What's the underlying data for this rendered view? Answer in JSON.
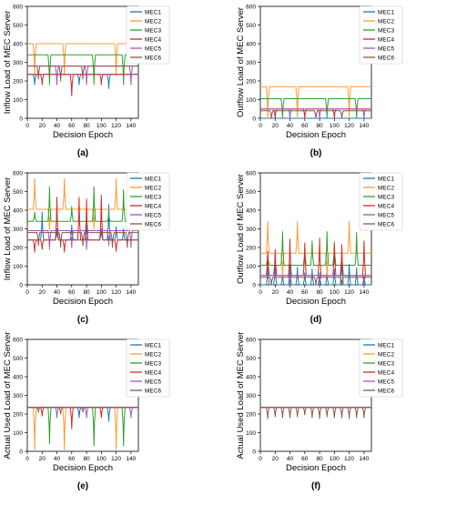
{
  "figure": {
    "series_names": [
      "MEC1",
      "MEC2",
      "MEC3",
      "MEC4",
      "MEC5",
      "MEC6"
    ],
    "series_colors": [
      "#1f77b4",
      "#ff9933",
      "#2ca02c",
      "#d62728",
      "#9b59b6",
      "#8c564b"
    ],
    "xlabel": "Decision Epoch",
    "xticks": [
      0,
      20,
      40,
      60,
      80,
      100,
      120,
      140
    ],
    "yticks": [
      0,
      100,
      200,
      300,
      400,
      500,
      600
    ],
    "xlim": [
      0,
      150
    ],
    "ylim": [
      0,
      600
    ]
  },
  "chart_data": [
    {
      "type": "line",
      "panel_label": "(a)",
      "ylabel": "Inflow Load of MEC Server",
      "xlim": [
        0,
        150
      ],
      "ylim": [
        0,
        600
      ],
      "legend": "top-right",
      "series": [
        {
          "name": "MEC1",
          "base": 235,
          "dips": [
            [
              10,
              180
            ],
            [
              70,
              180
            ],
            [
              110,
              160
            ]
          ]
        },
        {
          "name": "MEC2",
          "base": 400,
          "dips": [
            [
              10,
              230
            ],
            [
              50,
              230
            ],
            [
              120,
              230
            ]
          ]
        },
        {
          "name": "MEC3",
          "base": 340,
          "dips": [
            [
              30,
              180
            ],
            [
              90,
              180
            ],
            [
              130,
              180
            ]
          ]
        },
        {
          "name": "MEC4",
          "base": 235,
          "dips": [
            [
              20,
              180
            ],
            [
              60,
              120
            ],
            [
              100,
              180
            ]
          ]
        },
        {
          "name": "MEC5",
          "base": 280,
          "dips": [
            [
              40,
              180
            ],
            [
              80,
              180
            ],
            [
              140,
              180
            ]
          ]
        },
        {
          "name": "MEC6",
          "base": 280,
          "dips": [
            [
              15,
              210
            ],
            [
              45,
              200
            ],
            [
              75,
              210
            ]
          ]
        }
      ]
    },
    {
      "type": "line",
      "panel_label": "(b)",
      "ylabel": "Outflow Load of MEC Server",
      "xlim": [
        0,
        150
      ],
      "ylim": [
        0,
        600
      ],
      "legend": "top-right",
      "series": [
        {
          "name": "MEC1",
          "base": 0,
          "dips": []
        },
        {
          "name": "MEC2",
          "base": 170,
          "dips": [
            [
              10,
              0
            ],
            [
              50,
              0
            ],
            [
              120,
              0
            ]
          ]
        },
        {
          "name": "MEC3",
          "base": 105,
          "dips": [
            [
              30,
              0
            ],
            [
              90,
              0
            ],
            [
              130,
              0
            ]
          ]
        },
        {
          "name": "MEC4",
          "base": 50,
          "dips": [
            [
              20,
              0
            ],
            [
              60,
              0
            ],
            [
              100,
              0
            ]
          ]
        },
        {
          "name": "MEC5",
          "base": 50,
          "dips": [
            [
              40,
              0
            ],
            [
              80,
              0
            ],
            [
              140,
              0
            ]
          ]
        },
        {
          "name": "MEC6",
          "base": 40,
          "dips": [
            [
              15,
              0
            ],
            [
              75,
              0
            ],
            [
              110,
              0
            ]
          ]
        }
      ]
    },
    {
      "type": "line",
      "panel_label": "(c)",
      "ylabel": "Inflow Load of MEC Server",
      "xlim": [
        0,
        150
      ],
      "ylim": [
        0,
        600
      ],
      "legend": "top-right",
      "series": [
        {
          "name": "MEC1",
          "base": 240,
          "dips": [
            [
              20,
              390
            ],
            [
              40,
              300
            ],
            [
              60,
              320
            ],
            [
              80,
              320
            ],
            [
              100,
              300
            ],
            [
              110,
              430
            ],
            [
              120,
              310
            ],
            [
              130,
              300
            ]
          ]
        },
        {
          "name": "MEC2",
          "base": 405,
          "dips": [
            [
              10,
              570
            ],
            [
              30,
              290
            ],
            [
              50,
              570
            ],
            [
              70,
              420
            ],
            [
              90,
              300
            ],
            [
              120,
              570
            ]
          ]
        },
        {
          "name": "MEC3",
          "base": 340,
          "dips": [
            [
              10,
              390
            ],
            [
              30,
              525
            ],
            [
              60,
              420
            ],
            [
              90,
              525
            ],
            [
              110,
              380
            ],
            [
              130,
              510
            ]
          ]
        },
        {
          "name": "MEC4",
          "base": 240,
          "dips": [
            [
              10,
              175
            ],
            [
              20,
              190
            ],
            [
              40,
              470
            ],
            [
              50,
              175
            ],
            [
              70,
              470
            ],
            [
              80,
              460
            ],
            [
              100,
              480
            ],
            [
              120,
              180
            ]
          ]
        },
        {
          "name": "MEC5",
          "base": 290,
          "dips": [
            [
              30,
              190
            ],
            [
              60,
              200
            ],
            [
              80,
              190
            ],
            [
              110,
              210
            ],
            [
              140,
              200
            ]
          ]
        },
        {
          "name": "MEC6",
          "base": 280,
          "dips": [
            [
              15,
              210
            ],
            [
              45,
              200
            ],
            [
              75,
              210
            ],
            [
              115,
              200
            ],
            [
              135,
              200
            ]
          ]
        }
      ]
    },
    {
      "type": "line",
      "panel_label": "(d)",
      "ylabel": "Outflow Load of MEC Server",
      "xlim": [
        0,
        150
      ],
      "ylim": [
        0,
        600
      ],
      "legend": "top-right",
      "series": [
        {
          "name": "MEC1",
          "base": 0,
          "dips": [
            [
              10,
              95
            ],
            [
              20,
              105
            ],
            [
              30,
              55
            ],
            [
              40,
              110
            ],
            [
              50,
              95
            ],
            [
              60,
              65
            ],
            [
              70,
              85
            ],
            [
              80,
              65
            ],
            [
              90,
              70
            ],
            [
              100,
              85
            ],
            [
              110,
              160
            ],
            [
              120,
              110
            ],
            [
              130,
              90
            ],
            [
              140,
              55
            ]
          ]
        },
        {
          "name": "MEC2",
          "base": 170,
          "dips": [
            [
              10,
              340
            ],
            [
              50,
              340
            ],
            [
              120,
              340
            ],
            [
              30,
              40
            ],
            [
              90,
              40
            ]
          ]
        },
        {
          "name": "MEC3",
          "base": 105,
          "dips": [
            [
              30,
              285
            ],
            [
              60,
              195
            ],
            [
              70,
              235
            ],
            [
              90,
              285
            ],
            [
              100,
              230
            ],
            [
              130,
              280
            ],
            [
              10,
              170
            ]
          ]
        },
        {
          "name": "MEC4",
          "base": 50,
          "dips": [
            [
              20,
              190
            ],
            [
              40,
              245
            ],
            [
              60,
              225
            ],
            [
              80,
              250
            ],
            [
              100,
              215
            ],
            [
              110,
              215
            ],
            [
              140,
              235
            ],
            [
              10,
              180
            ]
          ]
        },
        {
          "name": "MEC5",
          "base": 50,
          "dips": [
            [
              40,
              0
            ],
            [
              80,
              0
            ],
            [
              140,
              0
            ]
          ]
        },
        {
          "name": "MEC6",
          "base": 40,
          "dips": [
            [
              15,
              0
            ],
            [
              75,
              0
            ],
            [
              110,
              0
            ]
          ]
        }
      ]
    },
    {
      "type": "line",
      "panel_label": "(e)",
      "ylabel": "Actual Used Load of MEC Server",
      "xlim": [
        0,
        150
      ],
      "ylim": [
        0,
        600
      ],
      "legend": "top-right",
      "series": [
        {
          "name": "MEC1",
          "base": 235,
          "dips": [
            [
              70,
              180
            ],
            [
              110,
              160
            ]
          ]
        },
        {
          "name": "MEC2",
          "base": 235,
          "dips": [
            [
              10,
              10
            ],
            [
              50,
              10
            ],
            [
              120,
              10
            ]
          ]
        },
        {
          "name": "MEC3",
          "base": 235,
          "dips": [
            [
              30,
              40
            ],
            [
              90,
              30
            ],
            [
              130,
              30
            ]
          ]
        },
        {
          "name": "MEC4",
          "base": 235,
          "dips": [
            [
              20,
              190
            ],
            [
              60,
              120
            ],
            [
              100,
              180
            ]
          ]
        },
        {
          "name": "MEC5",
          "base": 235,
          "dips": [
            [
              40,
              180
            ],
            [
              80,
              180
            ],
            [
              140,
              180
            ]
          ]
        },
        {
          "name": "MEC6",
          "base": 235,
          "dips": [
            [
              15,
              210
            ],
            [
              45,
              200
            ],
            [
              75,
              210
            ]
          ]
        }
      ]
    },
    {
      "type": "line",
      "panel_label": "(f)",
      "ylabel": "Actual Used Load of MEC Server",
      "xlim": [
        0,
        150
      ],
      "ylim": [
        0,
        600
      ],
      "legend": "top-right",
      "series": [
        {
          "name": "MEC1",
          "base": 235,
          "dips": []
        },
        {
          "name": "MEC2",
          "base": 235,
          "dips": []
        },
        {
          "name": "MEC3",
          "base": 235,
          "dips": []
        },
        {
          "name": "MEC4",
          "base": 235,
          "dips": []
        },
        {
          "name": "MEC5",
          "base": 235,
          "dips": []
        },
        {
          "name": "MEC6",
          "base": 235,
          "dips": [
            [
              10,
              175
            ],
            [
              20,
              185
            ],
            [
              30,
              180
            ],
            [
              40,
              180
            ],
            [
              50,
              185
            ],
            [
              60,
              195
            ],
            [
              70,
              180
            ],
            [
              80,
              175
            ],
            [
              90,
              185
            ],
            [
              100,
              180
            ],
            [
              110,
              180
            ],
            [
              120,
              175
            ],
            [
              130,
              180
            ],
            [
              140,
              180
            ]
          ]
        }
      ]
    }
  ]
}
